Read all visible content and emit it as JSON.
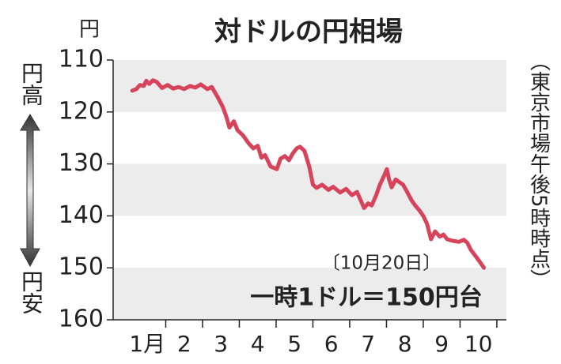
{
  "chart_data": {
    "type": "line",
    "title": "対ドルの円相場",
    "y_unit": "円",
    "y_top_label": "円高",
    "y_bottom_label": "円安",
    "side_note": "（東京市場午後5時時点）",
    "annotation_date": "〔10月20日〕",
    "annotation": "一時1ドル＝150円台",
    "categories": [
      "1月",
      "2",
      "3",
      "4",
      "5",
      "6",
      "7",
      "8",
      "9",
      "10"
    ],
    "xlim": [
      0.57,
      11.26
    ],
    "xticks": [
      2,
      3,
      4,
      5,
      6,
      7,
      8,
      9,
      10,
      11
    ],
    "ylim": [
      110,
      160
    ],
    "yticks": [
      110,
      120,
      130,
      140,
      150,
      160
    ],
    "y_inverted": true,
    "bands": true,
    "series": [
      {
        "color": "#d8435c",
        "x": [
          1.09,
          1.2,
          1.3,
          1.4,
          1.47,
          1.55,
          1.65,
          1.75,
          1.9,
          2.05,
          2.2,
          2.35,
          2.5,
          2.66,
          2.8,
          2.95,
          3.13,
          3.25,
          3.4,
          3.55,
          3.65,
          3.73,
          3.85,
          3.95,
          4.1,
          4.25,
          4.38,
          4.5,
          4.6,
          4.7,
          4.85,
          5.02,
          5.12,
          5.24,
          5.35,
          5.45,
          5.56,
          5.65,
          5.77,
          5.9,
          6.0,
          6.1,
          6.25,
          6.42,
          6.55,
          6.74,
          6.9,
          7.06,
          7.2,
          7.39,
          7.5,
          7.6,
          7.72,
          7.82,
          7.92,
          8.01,
          8.07,
          8.14,
          8.25,
          8.35,
          8.45,
          8.57,
          8.68,
          8.78,
          8.9,
          9.0,
          9.1,
          9.21,
          9.32,
          9.45,
          9.55,
          9.65,
          9.8,
          9.97,
          10.1,
          10.2,
          10.29,
          10.45,
          10.55,
          10.65
        ],
        "values": [
          115.9,
          115.6,
          114.8,
          115.0,
          114.0,
          114.6,
          113.9,
          114.2,
          115.4,
          114.8,
          115.5,
          115.2,
          115.6,
          115.0,
          115.3,
          114.7,
          115.6,
          115.2,
          117.0,
          119.0,
          121.0,
          123.0,
          121.8,
          123.5,
          124.5,
          126.0,
          127.0,
          126.5,
          128.8,
          128.3,
          130.5,
          131.0,
          129.0,
          128.5,
          129.3,
          128.0,
          127.0,
          126.7,
          127.5,
          130.5,
          134.0,
          134.6,
          134.0,
          135.0,
          134.4,
          135.5,
          134.8,
          136.0,
          135.4,
          138.5,
          137.6,
          138.0,
          136.0,
          134.0,
          132.5,
          131.0,
          133.0,
          134.5,
          133.0,
          133.5,
          134.0,
          135.5,
          137.0,
          138.0,
          139.0,
          140.0,
          141.5,
          144.5,
          143.0,
          144.0,
          143.6,
          144.5,
          144.8,
          145.0,
          144.6,
          145.2,
          146.5,
          148.0,
          149.0,
          150.0
        ]
      }
    ]
  }
}
